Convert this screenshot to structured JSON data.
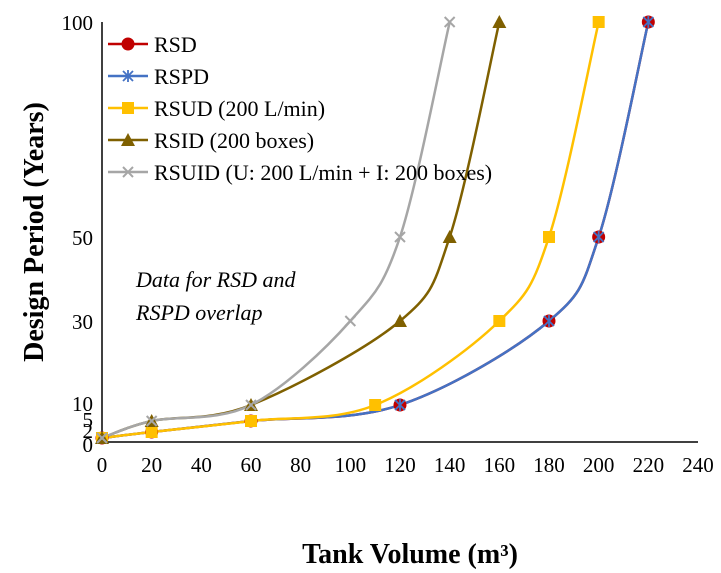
{
  "chart_data": {
    "type": "line",
    "xlabel": "Tank Volume (m³)",
    "ylabel": "Design Period (Years)",
    "x_ticks": [
      0,
      20,
      40,
      60,
      80,
      100,
      120,
      140,
      160,
      180,
      200,
      220,
      240
    ],
    "y_ticks": [
      0,
      2,
      5,
      10,
      30,
      50,
      100
    ],
    "y_tick_labels": [
      "0",
      "2",
      "5",
      "10",
      "30",
      "50",
      "100"
    ],
    "xlim": [
      0,
      240
    ],
    "ylim": [
      0,
      100
    ],
    "grid": false,
    "legend_position": "top-left",
    "annotation": [
      "Data for RSD and",
      "RSPD overlap"
    ],
    "series": [
      {
        "name": "RSD",
        "color": "#c00000",
        "marker": "circle",
        "x": [
          0,
          20,
          60,
          120,
          180,
          200,
          220
        ],
        "y": [
          1,
          2,
          5,
          10,
          30,
          50,
          100
        ]
      },
      {
        "name": "RSPD",
        "color": "#4472c4",
        "marker": "asterisk",
        "x": [
          0,
          20,
          60,
          120,
          180,
          200,
          220
        ],
        "y": [
          1,
          2,
          5,
          10,
          30,
          50,
          100
        ]
      },
      {
        "name": "RSUD (200 L/min)",
        "color": "#ffc000",
        "marker": "square",
        "x": [
          0,
          20,
          60,
          110,
          160,
          180,
          200
        ],
        "y": [
          1,
          2,
          5,
          10,
          30,
          50,
          100
        ]
      },
      {
        "name": "RSID (200 boxes)",
        "color": "#7f6000",
        "marker": "triangle",
        "x": [
          0,
          20,
          60,
          120,
          140,
          160
        ],
        "y": [
          1,
          5,
          10,
          30,
          50,
          100
        ]
      },
      {
        "name": "RSUID (U: 200 L/min + I: 200 boxes)",
        "color": "#a6a6a6",
        "marker": "cross",
        "x": [
          0,
          20,
          60,
          100,
          120,
          140
        ],
        "y": [
          1,
          5,
          10,
          30,
          50,
          100
        ]
      }
    ]
  }
}
